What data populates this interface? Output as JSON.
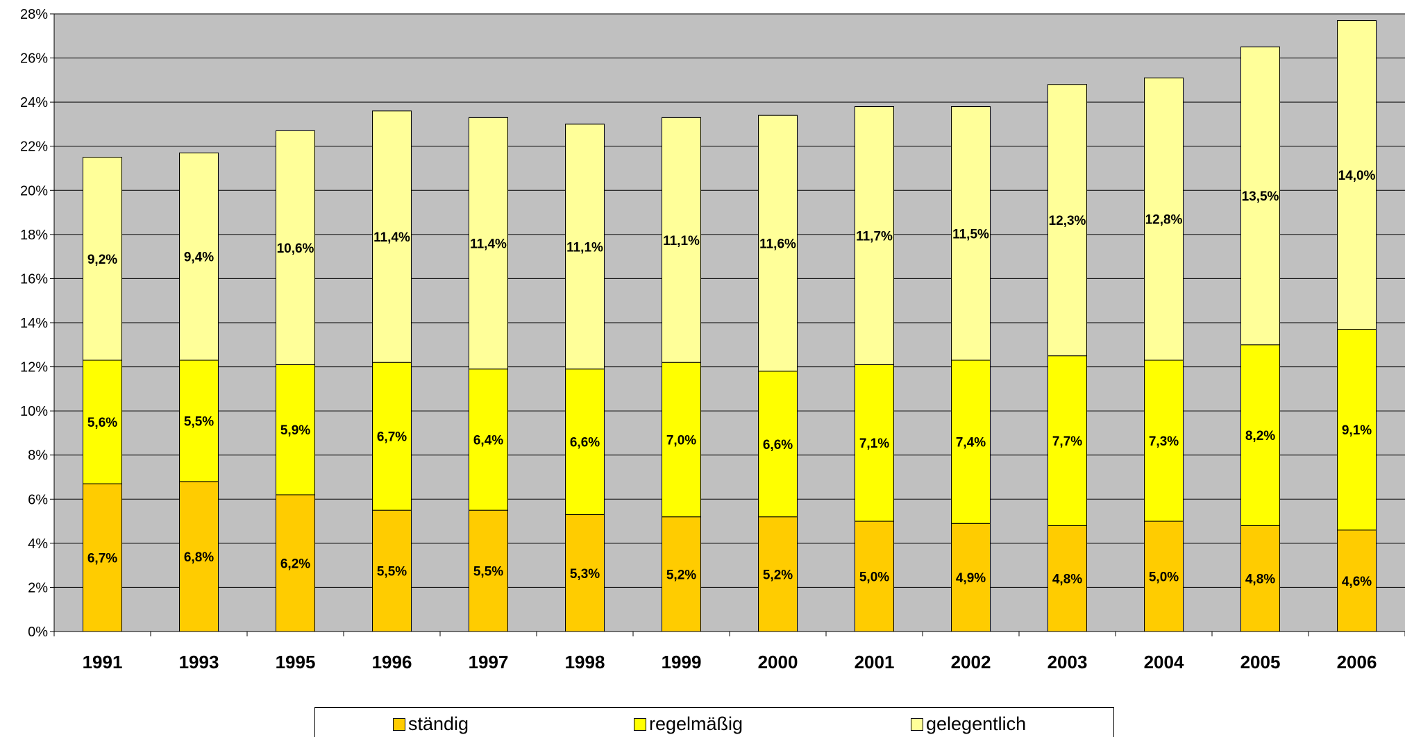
{
  "chart_data": {
    "type": "bar",
    "stacked": true,
    "categories": [
      "1991",
      "1993",
      "1995",
      "1996",
      "1997",
      "1998",
      "1999",
      "2000",
      "2001",
      "2002",
      "2003",
      "2004",
      "2005",
      "2006"
    ],
    "series": [
      {
        "name": "ständig",
        "color": "#FFCC00",
        "values": [
          6.7,
          6.8,
          6.2,
          5.5,
          5.5,
          5.3,
          5.2,
          5.2,
          5.0,
          4.9,
          4.8,
          5.0,
          4.8,
          4.6
        ],
        "labels": [
          "6,7%",
          "6,8%",
          "6,2%",
          "5,5%",
          "5,5%",
          "5,3%",
          "5,2%",
          "5,2%",
          "5,0%",
          "4,9%",
          "4,8%",
          "5,0%",
          "4,8%",
          "4,6%"
        ]
      },
      {
        "name": "regelmäßig",
        "color": "#FFFF00",
        "values": [
          5.6,
          5.5,
          5.9,
          6.7,
          6.4,
          6.6,
          7.0,
          6.6,
          7.1,
          7.4,
          7.7,
          7.3,
          8.2,
          9.1
        ],
        "labels": [
          "5,6%",
          "5,5%",
          "5,9%",
          "6,7%",
          "6,4%",
          "6,6%",
          "7,0%",
          "6,6%",
          "7,1%",
          "7,4%",
          "7,7%",
          "7,3%",
          "8,2%",
          "9,1%"
        ]
      },
      {
        "name": "gelegentlich",
        "color": "#FFFF99",
        "values": [
          9.2,
          9.4,
          10.6,
          11.4,
          11.4,
          11.1,
          11.1,
          11.6,
          11.7,
          11.5,
          12.3,
          12.8,
          13.5,
          14.0
        ],
        "labels": [
          "9,2%",
          "9,4%",
          "10,6%",
          "11,4%",
          "11,4%",
          "11,1%",
          "11,1%",
          "11,6%",
          "11,7%",
          "11,5%",
          "12,3%",
          "12,8%",
          "13,5%",
          "14,0%"
        ]
      }
    ],
    "ylim": [
      0,
      28
    ],
    "yticks": [
      0,
      2,
      4,
      6,
      8,
      10,
      12,
      14,
      16,
      18,
      20,
      22,
      24,
      26,
      28
    ],
    "ytick_labels": [
      "0%",
      "2%",
      "4%",
      "6%",
      "8%",
      "10%",
      "12%",
      "14%",
      "16%",
      "18%",
      "20%",
      "22%",
      "24%",
      "26%",
      "28%"
    ],
    "plot_background": "#C0C0C0",
    "grid": true,
    "legend_position": "bottom"
  },
  "legend": {
    "items": [
      {
        "label": "ständig",
        "color": "#FFCC00"
      },
      {
        "label": "regelmäßig",
        "color": "#FFFF00"
      },
      {
        "label": "gelegentlich",
        "color": "#FFFF99"
      }
    ]
  }
}
